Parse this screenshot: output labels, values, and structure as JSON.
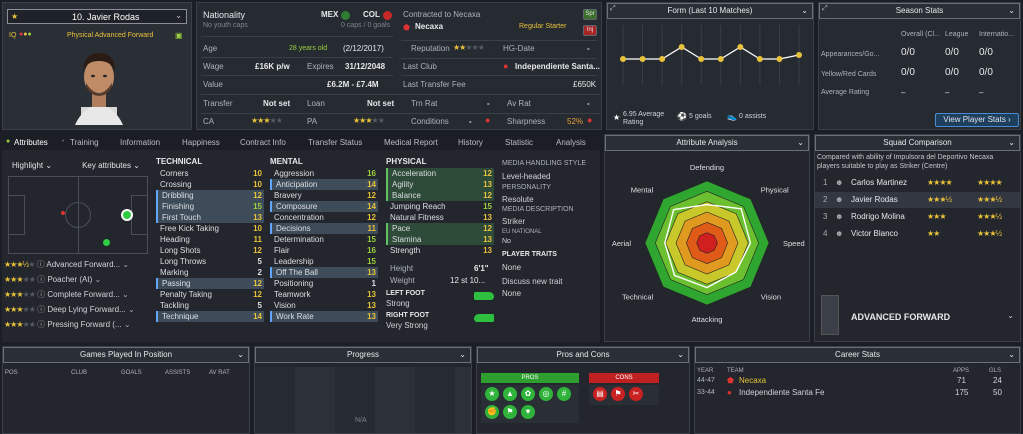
{
  "profile": {
    "name": "10. Javier Rodas",
    "role": "Physical Advanced Forward",
    "iq_label": "IQ"
  },
  "overview": {
    "nationality_label": "Nationality",
    "nationality_sub": "No youth caps",
    "nation1": "MEX",
    "nation2": "COL",
    "caps": "0 caps / 0 goals",
    "contracted_label": "Contracted to Necaxa",
    "club": "Necaxa",
    "status": "Regular Starter",
    "badge_spr": "Spr",
    "badge_inj": "Inj",
    "age_label": "Age",
    "age": "28 years old",
    "dob": "(2/12/2017)",
    "reputation_label": "Reputation",
    "hgdate_label": "HG-Date",
    "hgdate": "-",
    "wage_label": "Wage",
    "wage": "£16K p/w",
    "expires_label": "Expires",
    "expires": "31/12/2048",
    "lastclub_label": "Last Club",
    "lastclub": "Independiente Santa...",
    "value_label": "Value",
    "value": "£6.2M - £7.4M",
    "fee_label": "Last Transfer Fee",
    "fee": "£650K",
    "transfer_label": "Transfer",
    "transfer": "Not set",
    "loan_label": "Loan",
    "loan": "Not set",
    "trnrat_label": "Trn Rat",
    "trnrat": "-",
    "avrat_label": "Av Rat",
    "avrat": "-",
    "ca_label": "CA",
    "pa_label": "PA",
    "conditions_label": "Conditions",
    "conditions": "-",
    "sharpness_label": "Sharpness",
    "sharpness": "52%"
  },
  "form": {
    "title": "Form (Last 10 Matches)",
    "average": "6.95 Average Rating",
    "goals": "5 goals",
    "assists": "0 assists",
    "values": [
      6.9,
      6.9,
      6.9,
      7.2,
      6.9,
      6.9,
      7.2,
      6.9,
      6.9,
      7.0
    ]
  },
  "season": {
    "title": "Season Stats",
    "cols": [
      "Overall (Cl...",
      "League",
      "Internatio..."
    ],
    "rows": [
      {
        "label": "Appearances/Go...",
        "v": [
          "0/0",
          "0/0",
          "0/0"
        ]
      },
      {
        "label": "Yellow/Red Cards",
        "v": [
          "0/0",
          "0/0",
          "0/0"
        ]
      },
      {
        "label": "Average Rating",
        "v": [
          "–",
          "–",
          "–"
        ]
      }
    ],
    "button": "View Player Stats"
  },
  "tabs": [
    "Attributes",
    "Training",
    "Information",
    "Happiness",
    "Contract Info",
    "Transfer Status",
    "Medical Report",
    "History",
    "Statistic",
    "Analysis"
  ],
  "highlight": {
    "label": "Highlight",
    "key": "Key attributes"
  },
  "roles": [
    {
      "name": "Advanced Forward...",
      "stars": 3,
      "half": true
    },
    {
      "name": "Poacher (At)",
      "stars": 3,
      "half": false
    },
    {
      "name": "Complete Forward...",
      "stars": 3,
      "half": false
    },
    {
      "name": "Deep Lying Forward...",
      "stars": 3,
      "half": false
    },
    {
      "name": "Pressing Forward (...",
      "stars": 3,
      "half": false
    }
  ],
  "technical": {
    "title": "TECHNICAL",
    "items": [
      {
        "n": "Corners",
        "v": "10"
      },
      {
        "n": "Crossing",
        "v": "10"
      },
      {
        "n": "Dribbling",
        "v": "12"
      },
      {
        "n": "Finishing",
        "v": "15"
      },
      {
        "n": "First Touch",
        "v": "13"
      },
      {
        "n": "Free Kick Taking",
        "v": "10"
      },
      {
        "n": "Heading",
        "v": "11"
      },
      {
        "n": "Long Shots",
        "v": "12"
      },
      {
        "n": "Long Throws",
        "v": "5"
      },
      {
        "n": "Marking",
        "v": "2"
      },
      {
        "n": "Passing",
        "v": "12"
      },
      {
        "n": "Penalty Taking",
        "v": "12"
      },
      {
        "n": "Tackling",
        "v": "5"
      },
      {
        "n": "Technique",
        "v": "14"
      }
    ]
  },
  "mental": {
    "title": "MENTAL",
    "items": [
      {
        "n": "Aggression",
        "v": "16"
      },
      {
        "n": "Anticipation",
        "v": "14"
      },
      {
        "n": "Bravery",
        "v": "12"
      },
      {
        "n": "Composure",
        "v": "14"
      },
      {
        "n": "Concentration",
        "v": "12"
      },
      {
        "n": "Decisions",
        "v": "11"
      },
      {
        "n": "Determination",
        "v": "15"
      },
      {
        "n": "Flair",
        "v": "16"
      },
      {
        "n": "Leadership",
        "v": "15"
      },
      {
        "n": "Off The Ball",
        "v": "13"
      },
      {
        "n": "Positioning",
        "v": "1"
      },
      {
        "n": "Teamwork",
        "v": "13"
      },
      {
        "n": "Vision",
        "v": "13"
      },
      {
        "n": "Work Rate",
        "v": "13"
      }
    ]
  },
  "physical": {
    "title": "PHYSICAL",
    "items": [
      {
        "n": "Acceleration",
        "v": "12"
      },
      {
        "n": "Agility",
        "v": "13"
      },
      {
        "n": "Balance",
        "v": "12"
      },
      {
        "n": "Jumping Reach",
        "v": "15"
      },
      {
        "n": "Natural Fitness",
        "v": "13"
      },
      {
        "n": "Pace",
        "v": "12"
      },
      {
        "n": "Stamina",
        "v": "13"
      },
      {
        "n": "Strength",
        "v": "13"
      }
    ],
    "height_label": "Height",
    "height": "6'1\"",
    "weight_label": "Weight",
    "weight": "12 st 10...",
    "leftfoot_label": "LEFT FOOT",
    "leftfoot": "Strong",
    "rightfoot_label": "RIGHT FOOT",
    "rightfoot": "Very Strong"
  },
  "media": {
    "style_label": "MEDIA HANDLING STYLE",
    "style": "Level-headed",
    "personality_label": "PERSONALITY",
    "personality": "Resolute",
    "desc_label": "MEDIA DESCRIPTION",
    "desc": "Striker",
    "eu_label": "EU NATIONAL",
    "eu": "No",
    "traits_label": "PLAYER TRAITS",
    "traits": "None",
    "discuss": "Discuss new trait",
    "discuss_val": "None"
  },
  "analysis": {
    "title": "Attribute Analysis",
    "labels": [
      "Defending",
      "Physical",
      "Speed",
      "Vision",
      "Attacking",
      "Technical",
      "Aerial",
      "Mental"
    ]
  },
  "squad": {
    "title": "Squad Comparison",
    "note": "Compared with ability of Impulsora del Deportivo Necaxa players suitable to play as Striker (Centre)",
    "players": [
      {
        "rank": "1",
        "name": "Carlos Martinez"
      },
      {
        "rank": "2",
        "name": "Javier Rodas"
      },
      {
        "rank": "3",
        "name": "Rodrigo Molina"
      },
      {
        "rank": "4",
        "name": "Victor Blanco"
      }
    ],
    "role": "ADVANCED FORWARD"
  },
  "bottom": {
    "games_title": "Games Played In Position",
    "games_cols": [
      "POS",
      "CLUB",
      "GOALS",
      "ASSISTS",
      "AV RAT"
    ],
    "progress_title": "Progress",
    "progress_na": "N/A",
    "pros_title": "Pros and Cons",
    "pros_label": "PROS",
    "cons_label": "CONS",
    "career_title": "Career Stats",
    "career_cols": [
      "YEAR",
      "TEAM",
      "APPS",
      "GLS"
    ],
    "career": [
      {
        "year": "44-47",
        "team": "Necaxa",
        "apps": "71",
        "gls": "24"
      },
      {
        "year": "33-44",
        "team": "Independiente Santa Fe",
        "apps": "175",
        "gls": "50"
      }
    ]
  },
  "colors": {
    "accent": "#9ccf3e",
    "highlight": "#5fa6ff",
    "star": "#e8c23a"
  }
}
